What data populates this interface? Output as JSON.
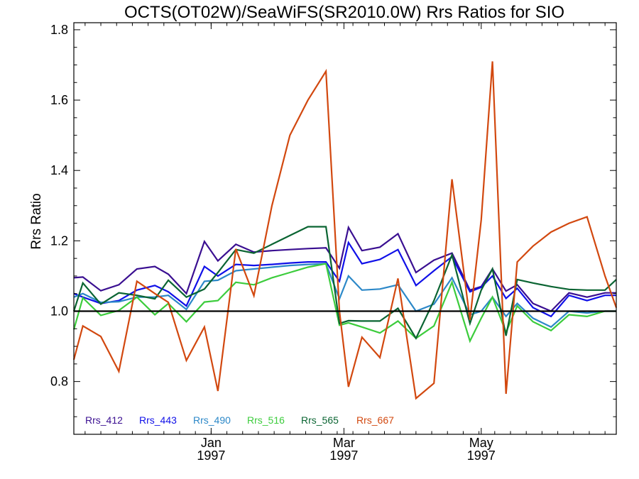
{
  "chart_data": {
    "type": "line",
    "title": "OCTS(OT02W)/SeaWiFS(SR2010.0W)  Rrs Ratios for SIO",
    "ylabel": "Rrs Ratio",
    "xlabel": "",
    "ylim": [
      0.65,
      1.82
    ],
    "xlim": [
      "1996-11-01",
      "1997-06-30"
    ],
    "grid": false,
    "legend_position": "bottom-left",
    "reference_line": 1.0,
    "y_ticks": [
      {
        "value": 0.8,
        "label": "0.8"
      },
      {
        "value": 1.0,
        "label": "1.0"
      },
      {
        "value": 1.2,
        "label": "1.2"
      },
      {
        "value": 1.4,
        "label": "1.4"
      },
      {
        "value": 1.6,
        "label": "1.6"
      },
      {
        "value": 1.8,
        "label": "1.8"
      }
    ],
    "x_ticks": [
      {
        "date": "1997-01-01",
        "month": "Jan",
        "year": "1997"
      },
      {
        "date": "1997-03-01",
        "month": "Mar",
        "year": "1997"
      },
      {
        "date": "1997-05-01",
        "month": "May",
        "year": "1997"
      }
    ],
    "x": [
      "1996-11-01",
      "1996-11-05",
      "1996-11-13",
      "1996-11-21",
      "1996-11-29",
      "1996-12-07",
      "1996-12-13",
      "1996-12-21",
      "1996-12-29",
      "1997-01-04",
      "1997-01-12",
      "1997-01-20",
      "1997-01-28",
      "1997-02-05",
      "1997-02-13",
      "1997-02-21",
      "1997-02-27",
      "1997-03-03",
      "1997-03-09",
      "1997-03-17",
      "1997-03-25",
      "1997-04-02",
      "1997-04-10",
      "1997-04-18",
      "1997-04-26",
      "1997-05-01",
      "1997-05-06",
      "1997-05-12",
      "1997-05-17",
      "1997-05-24",
      "1997-06-01",
      "1997-06-09",
      "1997-06-17",
      "1997-06-25",
      "1997-06-30"
    ],
    "series": [
      {
        "name": "Rrs_412",
        "color": "#3a0f91",
        "values": [
          1.095,
          1.097,
          1.058,
          1.075,
          1.12,
          1.127,
          1.105,
          1.05,
          1.198,
          1.143,
          1.19,
          1.168,
          1.172,
          1.175,
          1.178,
          1.18,
          1.122,
          1.238,
          1.172,
          1.182,
          1.22,
          1.11,
          1.145,
          1.165,
          1.06,
          1.07,
          1.12,
          1.057,
          1.075,
          1.022,
          1.0,
          1.052,
          1.04,
          1.052,
          1.052
        ]
      },
      {
        "name": "Rrs_443",
        "color": "#1010e8",
        "values": [
          1.05,
          1.04,
          1.022,
          1.03,
          1.06,
          1.073,
          1.055,
          1.015,
          1.127,
          1.1,
          1.133,
          1.13,
          1.133,
          1.137,
          1.14,
          1.14,
          1.085,
          1.195,
          1.135,
          1.147,
          1.175,
          1.073,
          1.115,
          1.155,
          1.055,
          1.068,
          1.1,
          1.036,
          1.065,
          1.01,
          0.985,
          1.045,
          1.03,
          1.045,
          1.045
        ]
      },
      {
        "name": "Rrs_490",
        "color": "#2c88c8",
        "values": [
          1.04,
          1.05,
          1.025,
          1.027,
          1.04,
          1.04,
          1.045,
          1.005,
          1.085,
          1.088,
          1.115,
          1.12,
          1.125,
          1.13,
          1.133,
          1.135,
          1.035,
          1.1,
          1.06,
          1.063,
          1.075,
          1.0,
          1.02,
          1.095,
          0.99,
          1.0,
          1.04,
          0.985,
          1.022,
          0.98,
          0.955,
          1.0,
          0.995,
          1.0,
          1.0
        ]
      },
      {
        "name": "Rrs_516",
        "color": "#3ccc3c",
        "values": [
          0.948,
          1.038,
          0.988,
          1.002,
          1.04,
          0.99,
          1.022,
          0.97,
          1.026,
          1.03,
          1.082,
          1.075,
          1.095,
          1.11,
          1.125,
          1.135,
          0.96,
          0.967,
          0.955,
          0.938,
          0.972,
          0.923,
          0.958,
          1.082,
          0.915,
          0.98,
          1.04,
          0.94,
          1.015,
          0.97,
          0.945,
          0.99,
          0.985,
          1.0,
          1.0
        ]
      },
      {
        "name": "Rrs_565",
        "color": "#0a6432",
        "values": [
          1.0,
          1.08,
          1.02,
          1.052,
          1.045,
          1.035,
          1.088,
          1.04,
          1.063,
          1.11,
          1.175,
          1.165,
          1.19,
          1.215,
          1.24,
          1.24,
          0.965,
          0.973,
          0.972,
          0.972,
          1.008,
          0.923,
          1.03,
          1.16,
          0.965,
          1.06,
          1.12,
          0.93,
          1.09,
          1.08,
          1.07,
          1.062,
          1.06,
          1.06,
          1.09
        ]
      },
      {
        "name": "Rrs_667",
        "color": "#d2480f",
        "values": [
          0.862,
          0.958,
          0.928,
          0.829,
          1.085,
          1.05,
          1.025,
          0.86,
          0.955,
          0.773,
          1.177,
          1.044,
          1.3,
          1.5,
          1.6,
          1.682,
          1.0,
          0.785,
          0.926,
          0.868,
          1.093,
          0.752,
          0.795,
          1.375,
          0.975,
          1.26,
          1.71,
          0.765,
          1.14,
          1.185,
          1.225,
          1.25,
          1.268,
          1.1,
          1.01
        ]
      }
    ]
  }
}
